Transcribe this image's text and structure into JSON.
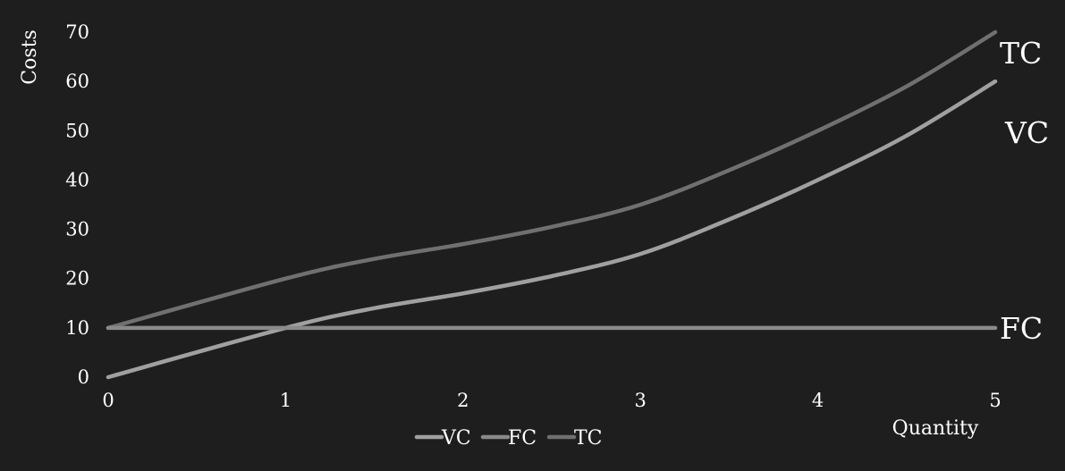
{
  "colors": {
    "background": "#1e1e1e",
    "text": "#ffffff",
    "vc": "#a0a0a0",
    "fc": "#8a8a8a",
    "tc": "#707070"
  },
  "chart_data": {
    "type": "line",
    "xlabel": "Quantity",
    "ylabel": "Costs",
    "xlim": [
      0,
      5
    ],
    "ylim": [
      0,
      70
    ],
    "x_ticks": [
      "0",
      "1",
      "2",
      "3",
      "4",
      "5"
    ],
    "y_ticks": [
      "0",
      "10",
      "20",
      "30",
      "40",
      "50",
      "60",
      "70"
    ],
    "grid": false,
    "legend": "bottom-center",
    "series": [
      {
        "name": "VC",
        "end_label": "VC",
        "x": [
          0,
          1,
          1.5,
          2,
          2.5,
          3,
          3.5,
          4,
          4.5,
          5
        ],
        "values": [
          0,
          10,
          14,
          17,
          20.5,
          25,
          32,
          40,
          49,
          60
        ]
      },
      {
        "name": "FC",
        "end_label": "FC",
        "x": [
          0,
          1,
          2,
          3,
          4,
          5
        ],
        "values": [
          10,
          10,
          10,
          10,
          10,
          10
        ]
      },
      {
        "name": "TC",
        "end_label": "TC",
        "x": [
          0,
          1,
          1.5,
          2,
          2.5,
          3,
          3.5,
          4,
          4.5,
          5
        ],
        "values": [
          10,
          20,
          24,
          27,
          30.5,
          35,
          42,
          50,
          59,
          70
        ]
      }
    ]
  }
}
